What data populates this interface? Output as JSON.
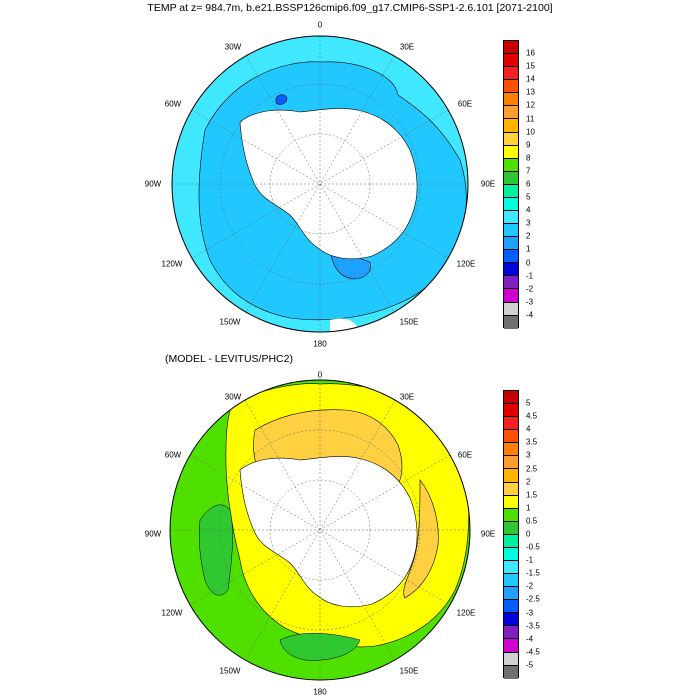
{
  "plot1": {
    "title": "TEMP at z= 984.7m, b.e21.BSSP126cmip6.f09_g17.CMIP6-SSP1-2.6.101 [2071-2100]",
    "longitude_labels": [
      "0",
      "30E",
      "60E",
      "90E",
      "120E",
      "150E",
      "180",
      "150W",
      "120W",
      "90W",
      "60W",
      "30W"
    ],
    "colorbar": {
      "labels": [
        "16",
        "15",
        "14",
        "13",
        "12",
        "11",
        "10",
        "9",
        "8",
        "7",
        "6",
        "5",
        "4",
        "3",
        "2",
        "1",
        "0",
        "-1",
        "-2",
        "-3",
        "-4"
      ],
      "colors": [
        "#c80000",
        "#e00000",
        "#f52020",
        "#ff5000",
        "#ff8000",
        "#ff9e30",
        "#ffb400",
        "#ffd040",
        "#ffff00",
        "#50e000",
        "#30c830",
        "#00f0a0",
        "#00ffe0",
        "#40e8ff",
        "#20c8ff",
        "#1ea0ff",
        "#0060ff",
        "#0000e0",
        "#8020c0",
        "#d000d0",
        "#d0d0d0",
        "#707070"
      ]
    }
  },
  "plot2": {
    "title": "(MODEL - LEVITUS/PHC2)",
    "longitude_labels": [
      "0",
      "30E",
      "60E",
      "90E",
      "120E",
      "150E",
      "180",
      "150W",
      "120W",
      "90W",
      "60W",
      "30W"
    ],
    "colorbar": {
      "labels": [
        "5",
        "4.5",
        "4",
        "3.5",
        "3",
        "2.5",
        "2",
        "1.5",
        "1",
        "0.5",
        "0",
        "-0.5",
        "-1",
        "-1.5",
        "-2",
        "-2.5",
        "-3",
        "-3.5",
        "-4",
        "-4.5",
        "-5"
      ],
      "colors": [
        "#c80000",
        "#e00000",
        "#f52020",
        "#ff5000",
        "#ff8000",
        "#ff9e30",
        "#ffb400",
        "#ffd040",
        "#ffff00",
        "#50e000",
        "#30c830",
        "#00f0a0",
        "#00ffe0",
        "#40e8ff",
        "#20c8ff",
        "#1ea0ff",
        "#0060ff",
        "#0000e0",
        "#8020c0",
        "#d000d0",
        "#d0d0d0",
        "#707070"
      ]
    }
  },
  "palette": {
    "ocean_top_outer": "#40e8ff",
    "ocean_top_inner": "#20c8ff",
    "ocean_top_cold": "#1ea0ff",
    "bottom_green": "#50e000",
    "bottom_yellow": "#ffff00",
    "bottom_orange": "#ffd040",
    "land": "#ffffff"
  }
}
